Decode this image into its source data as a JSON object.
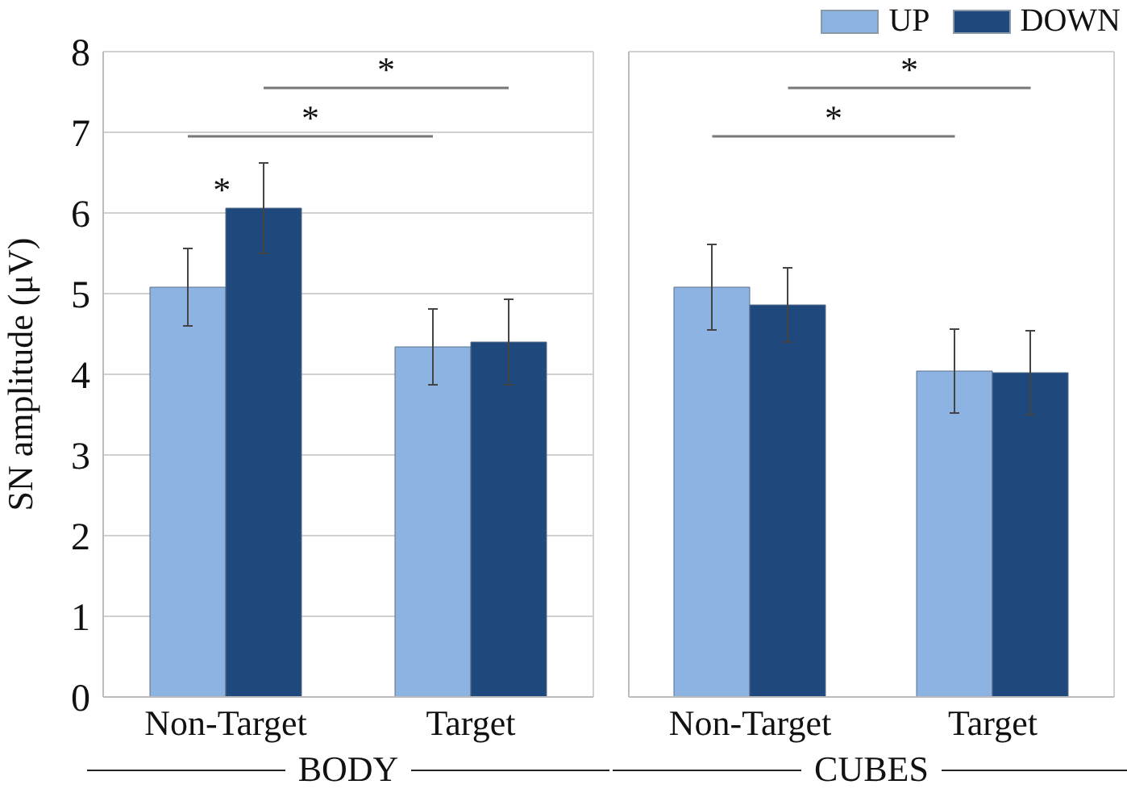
{
  "chart_data": [
    {
      "type": "bar",
      "ylabel": "SN amplitude (μV)",
      "xlabel": "BODY",
      "categories": [
        "Non-Target",
        "Target"
      ],
      "series": [
        {
          "color": "#8db3e2",
          "values": [
            5.08,
            4.34
          ],
          "errors": [
            0.48,
            0.47
          ]
        },
        {
          "color": "#1f497d",
          "values": [
            6.06,
            4.4
          ],
          "errors": [
            0.56,
            0.53
          ]
        }
      ],
      "ylim": [
        0,
        8
      ],
      "yticks": [
        0,
        1,
        2,
        3,
        4,
        5,
        6,
        7,
        8
      ],
      "grid": "y",
      "legend": false,
      "annotations": [
        "*",
        "*",
        "*"
      ]
    },
    {
      "type": "bar",
      "xlabel": "CUBES",
      "categories": [
        "Non-Target",
        "Target"
      ],
      "series": [
        {
          "name": "UP",
          "color": "#8db3e2",
          "values": [
            5.08,
            4.04
          ],
          "errors": [
            0.53,
            0.52
          ]
        },
        {
          "name": "DOWN",
          "color": "#1f497d",
          "values": [
            4.86,
            4.02
          ],
          "errors": [
            0.46,
            0.52
          ]
        }
      ],
      "ylim": [
        0,
        8
      ],
      "yticks": [
        0,
        1,
        2,
        3,
        4,
        5,
        6,
        7,
        8
      ],
      "grid": "y",
      "legend": "top right",
      "tick_labels": "x",
      "annotations": [
        "*",
        "*"
      ]
    }
  ]
}
